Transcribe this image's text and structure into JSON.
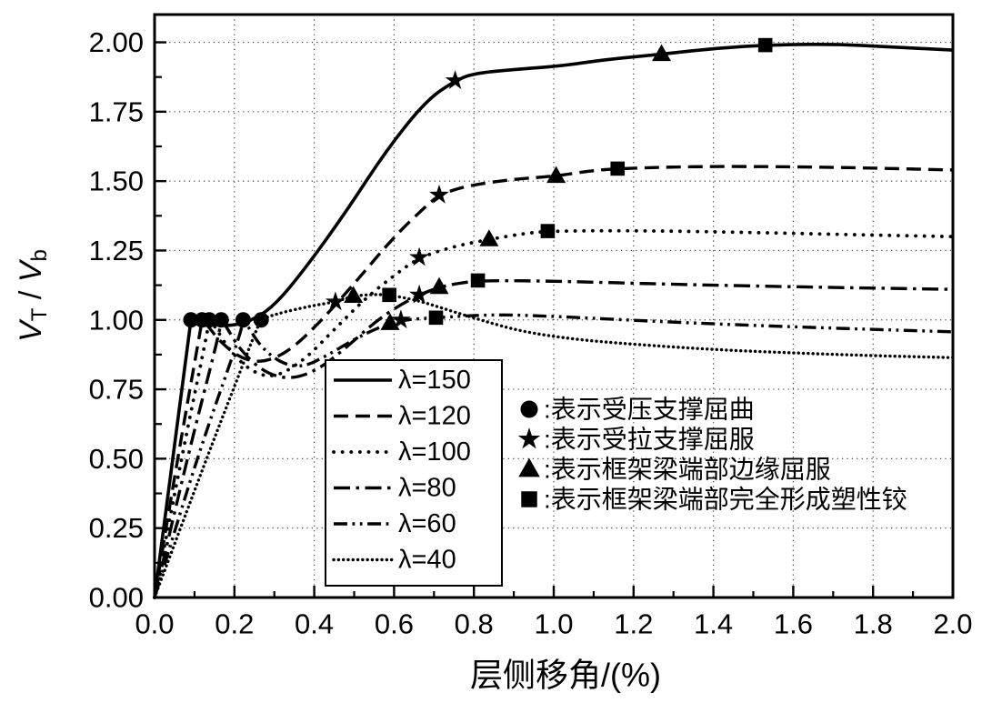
{
  "figure": {
    "background": "#ffffff",
    "ink_color": "#000000",
    "grid_color": "#3f3f3f"
  },
  "chart_data": {
    "type": "line",
    "title": "",
    "xlabel": "层侧移角/(%)",
    "ylabel": "V_T / V_b",
    "ylabel_parts": {
      "v1": "V",
      "sub1": "T",
      "sep": " / ",
      "v2": "V",
      "sub2": "b"
    },
    "xlim": [
      0,
      2.0
    ],
    "ylim": [
      0,
      2.1
    ],
    "grid": "dotted",
    "legend_position": "inside-bottom-center",
    "x_ticks": {
      "values": [
        0,
        0.2,
        0.4,
        0.6,
        0.8,
        1.0,
        1.2,
        1.4,
        1.6,
        1.8,
        2.0
      ],
      "labels": [
        "0.0",
        "0.2",
        "0.4",
        "0.6",
        "0.8",
        "1.0",
        "1.2",
        "1.4",
        "1.6",
        "1.8",
        "2.0"
      ],
      "minor_step": 0.1
    },
    "y_ticks": {
      "values": [
        0,
        0.25,
        0.5,
        0.75,
        1.0,
        1.25,
        1.5,
        1.75,
        2.0
      ],
      "labels": [
        "0.00",
        "0.25",
        "0.50",
        "0.75",
        "1.00",
        "1.25",
        "1.50",
        "1.75",
        "2.00"
      ],
      "minor_step": 0.125
    },
    "series": [
      {
        "name": "λ=150",
        "dash": "solid",
        "points": [
          [
            0,
            0
          ],
          [
            0.05,
            0.55
          ],
          [
            0.085,
            0.93
          ],
          [
            0.091,
            1.0
          ],
          [
            0.1,
            1.0
          ],
          [
            0.14,
            0.985
          ],
          [
            0.19,
            0.978
          ],
          [
            0.24,
            0.995
          ],
          [
            0.3,
            1.05
          ],
          [
            0.38,
            1.19
          ],
          [
            0.48,
            1.39
          ],
          [
            0.58,
            1.61
          ],
          [
            0.68,
            1.79
          ],
          [
            0.753,
            1.862
          ],
          [
            0.8,
            1.888
          ],
          [
            0.9,
            1.902
          ],
          [
            1.02,
            1.915
          ],
          [
            1.13,
            1.938
          ],
          [
            1.27,
            1.957
          ],
          [
            1.4,
            1.978
          ],
          [
            1.53,
            1.99
          ],
          [
            1.7,
            1.994
          ],
          [
            1.85,
            1.983
          ],
          [
            2.0,
            1.972
          ]
        ],
        "markers": {
          "circle": [
            0.091,
            1.0
          ],
          "star": [
            0.753,
            1.862
          ],
          "triangle": [
            1.27,
            1.957
          ],
          "square": [
            1.53,
            1.99
          ]
        }
      },
      {
        "name": "λ=120",
        "dash": "dashed",
        "points": [
          [
            0,
            0
          ],
          [
            0.06,
            0.52
          ],
          [
            0.112,
            0.94
          ],
          [
            0.119,
            1.0
          ],
          [
            0.13,
            0.985
          ],
          [
            0.165,
            0.92
          ],
          [
            0.215,
            0.862
          ],
          [
            0.27,
            0.845
          ],
          [
            0.335,
            0.885
          ],
          [
            0.41,
            0.985
          ],
          [
            0.5,
            1.13
          ],
          [
            0.6,
            1.3
          ],
          [
            0.68,
            1.41
          ],
          [
            0.713,
            1.45
          ],
          [
            0.78,
            1.483
          ],
          [
            0.9,
            1.507
          ],
          [
            1.006,
            1.518
          ],
          [
            1.09,
            1.537
          ],
          [
            1.16,
            1.545
          ],
          [
            1.35,
            1.553
          ],
          [
            1.6,
            1.552
          ],
          [
            1.8,
            1.547
          ],
          [
            2.0,
            1.54
          ]
        ],
        "markers": {
          "circle": [
            0.119,
            1.0
          ],
          "star": [
            0.713,
            1.45
          ],
          "triangle": [
            1.006,
            1.518
          ],
          "square": [
            1.16,
            1.545
          ]
        }
      },
      {
        "name": "λ=100",
        "dash": "dotted",
        "points": [
          [
            0,
            0
          ],
          [
            0.07,
            0.52
          ],
          [
            0.13,
            0.94
          ],
          [
            0.137,
            1.0
          ],
          [
            0.15,
            0.98
          ],
          [
            0.185,
            0.895
          ],
          [
            0.24,
            0.815
          ],
          [
            0.3,
            0.79
          ],
          [
            0.375,
            0.855
          ],
          [
            0.45,
            0.965
          ],
          [
            0.53,
            1.08
          ],
          [
            0.6,
            1.16
          ],
          [
            0.663,
            1.225
          ],
          [
            0.75,
            1.265
          ],
          [
            0.838,
            1.29
          ],
          [
            0.92,
            1.31
          ],
          [
            0.985,
            1.32
          ],
          [
            1.2,
            1.322
          ],
          [
            1.5,
            1.315
          ],
          [
            1.75,
            1.307
          ],
          [
            2.0,
            1.3
          ]
        ],
        "markers": {
          "circle": [
            0.137,
            1.0
          ],
          "star": [
            0.663,
            1.225
          ],
          "triangle": [
            0.838,
            1.29
          ],
          "square": [
            0.985,
            1.32
          ]
        }
      },
      {
        "name": "λ=80",
        "dash": "dashdot",
        "points": [
          [
            0,
            0
          ],
          [
            0.085,
            0.52
          ],
          [
            0.16,
            0.94
          ],
          [
            0.167,
            1.0
          ],
          [
            0.18,
            0.975
          ],
          [
            0.215,
            0.89
          ],
          [
            0.275,
            0.81
          ],
          [
            0.34,
            0.785
          ],
          [
            0.41,
            0.82
          ],
          [
            0.48,
            0.9
          ],
          [
            0.55,
            0.99
          ],
          [
            0.61,
            1.05
          ],
          [
            0.663,
            1.09
          ],
          [
            0.713,
            1.118
          ],
          [
            0.765,
            1.133
          ],
          [
            0.82,
            1.142
          ],
          [
            1.0,
            1.14
          ],
          [
            1.3,
            1.128
          ],
          [
            1.65,
            1.118
          ],
          [
            2.0,
            1.11
          ]
        ],
        "markers": {
          "circle": [
            0.167,
            1.0
          ],
          "star": [
            0.663,
            1.09
          ],
          "triangle": [
            0.713,
            1.118
          ],
          "square": [
            0.81,
            1.142
          ]
        }
      },
      {
        "name": "λ=60",
        "dash": "dashdotdot",
        "points": [
          [
            0,
            0
          ],
          [
            0.11,
            0.52
          ],
          [
            0.213,
            0.94
          ],
          [
            0.222,
            1.0
          ],
          [
            0.235,
            0.975
          ],
          [
            0.265,
            0.905
          ],
          [
            0.315,
            0.845
          ],
          [
            0.37,
            0.828
          ],
          [
            0.43,
            0.87
          ],
          [
            0.5,
            0.93
          ],
          [
            0.56,
            0.972
          ],
          [
            0.617,
            1.0
          ],
          [
            0.705,
            1.008
          ],
          [
            0.85,
            1.02
          ],
          [
            1.0,
            1.013
          ],
          [
            1.25,
            0.995
          ],
          [
            1.5,
            0.98
          ],
          [
            1.75,
            0.968
          ],
          [
            2.0,
            0.957
          ]
        ],
        "markers": {
          "circle": [
            0.222,
            1.0
          ],
          "star": [
            0.617,
            1.0
          ],
          "triangle": [
            0.59,
            0.988
          ],
          "square": [
            0.705,
            1.008
          ]
        }
      },
      {
        "name": "λ=40",
        "dash": "densedot",
        "points": [
          [
            0,
            0
          ],
          [
            0.13,
            0.5
          ],
          [
            0.2,
            0.76
          ],
          [
            0.255,
            0.965
          ],
          [
            0.267,
            1.0
          ],
          [
            0.3,
            1.02
          ],
          [
            0.39,
            1.05
          ],
          [
            0.453,
            1.065
          ],
          [
            0.498,
            1.086
          ],
          [
            0.545,
            1.092
          ],
          [
            0.588,
            1.09
          ],
          [
            0.66,
            1.07
          ],
          [
            0.73,
            1.038
          ],
          [
            0.82,
            0.998
          ],
          [
            0.92,
            0.958
          ],
          [
            1.05,
            0.93
          ],
          [
            1.2,
            0.912
          ],
          [
            1.4,
            0.893
          ],
          [
            1.6,
            0.881
          ],
          [
            1.8,
            0.871
          ],
          [
            2.0,
            0.864
          ]
        ],
        "markers": {
          "circle": [
            0.267,
            1.0
          ],
          "star": [
            0.453,
            1.065
          ],
          "triangle": [
            0.498,
            1.086
          ],
          "square": [
            0.588,
            1.09
          ]
        }
      }
    ],
    "line_legend": {
      "items": [
        {
          "label": "λ=150",
          "dash": "solid"
        },
        {
          "label": "λ=120",
          "dash": "dashed"
        },
        {
          "label": "λ=100",
          "dash": "dotted"
        },
        {
          "label": "λ=80",
          "dash": "dashdot"
        },
        {
          "label": "λ=60",
          "dash": "dashdotdot"
        },
        {
          "label": "λ=40",
          "dash": "densedot"
        }
      ]
    },
    "marker_legend": {
      "items": [
        {
          "symbol": "circle",
          "label": ":表示受压支撑屈曲"
        },
        {
          "symbol": "star",
          "label": ":表示受拉支撑屈服"
        },
        {
          "symbol": "triangle",
          "label": ":表示框架梁端部边缘屈服"
        },
        {
          "symbol": "square",
          "label": ":表示框架梁端部完全形成塑性铰"
        }
      ]
    }
  }
}
